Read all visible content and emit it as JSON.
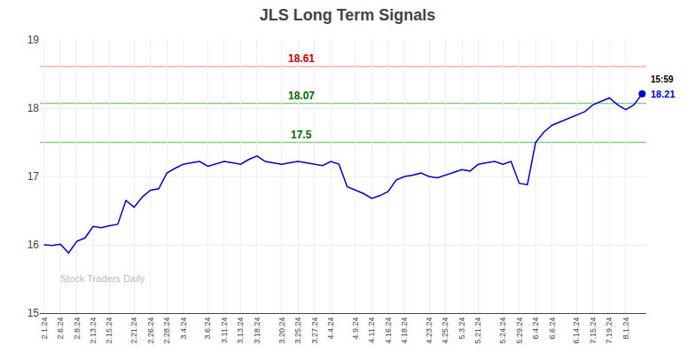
{
  "chart_data": {
    "type": "line",
    "title": "JLS Long Term Signals",
    "categories": [
      "2.1.24",
      null,
      "2.6.24",
      null,
      "2.8.24",
      null,
      "2.13.24",
      null,
      "2.15.24",
      null,
      null,
      "2.21.24",
      null,
      "2.26.24",
      null,
      "2.28.24",
      null,
      "3.4.24",
      null,
      null,
      "3.6.24",
      null,
      "3.11.24",
      null,
      "3.13.24",
      null,
      "3.18.24",
      null,
      null,
      "3.20.24",
      null,
      "3.25.24",
      null,
      "3.27.24",
      null,
      "4.4.24",
      null,
      null,
      "4.9.24",
      null,
      "4.11.24",
      null,
      "4.16.24",
      null,
      "4.18.24",
      null,
      null,
      "4.23.24",
      null,
      "4.25.24",
      null,
      "5.3.24",
      null,
      "5.21.24",
      null,
      null,
      "5.24.24",
      null,
      "5.29.24",
      null,
      "6.4.24",
      null,
      "6.6.24",
      null,
      null,
      "6.14.24",
      null,
      "7.15.24",
      null,
      "7.19.24",
      null,
      "8.1.24",
      null,
      null
    ],
    "values": [
      16.0,
      15.99,
      16.01,
      15.88,
      16.05,
      16.1,
      16.27,
      16.25,
      16.28,
      16.3,
      16.65,
      16.55,
      16.7,
      16.8,
      16.82,
      17.05,
      17.12,
      17.18,
      17.2,
      17.22,
      17.15,
      17.18,
      17.22,
      17.2,
      17.18,
      17.25,
      17.3,
      17.22,
      17.2,
      17.18,
      17.2,
      17.22,
      17.2,
      17.18,
      17.16,
      17.22,
      17.18,
      16.85,
      16.8,
      16.75,
      16.68,
      16.72,
      16.78,
      16.95,
      17.0,
      17.02,
      17.05,
      17.0,
      16.98,
      17.02,
      17.05,
      17.1,
      17.08,
      17.18,
      17.2,
      17.22,
      17.18,
      17.22,
      16.9,
      16.88,
      17.5,
      17.65,
      17.75,
      17.8,
      17.85,
      17.9,
      17.95,
      18.05,
      18.1,
      18.15,
      18.05,
      17.98,
      18.05,
      18.21
    ],
    "color": "#0000cc",
    "reference_lines": [
      {
        "value": 18.61,
        "color": "#ffaaaa",
        "label_color": "#cc0000"
      },
      {
        "value": 18.07,
        "color": "#88cc88",
        "label_color": "#006600"
      },
      {
        "value": 17.5,
        "color": "#88cc88",
        "label_color": "#006600"
      }
    ],
    "last_point": {
      "time": "15:59",
      "color": "#0000cc"
    },
    "annotations": [
      {
        "text": "Stock Traders Daily",
        "color": "#bbbbbb"
      }
    ],
    "ylim": [
      15.0,
      19.0
    ],
    "yticks": [
      15,
      16,
      17,
      18,
      19
    ],
    "grid": true
  }
}
